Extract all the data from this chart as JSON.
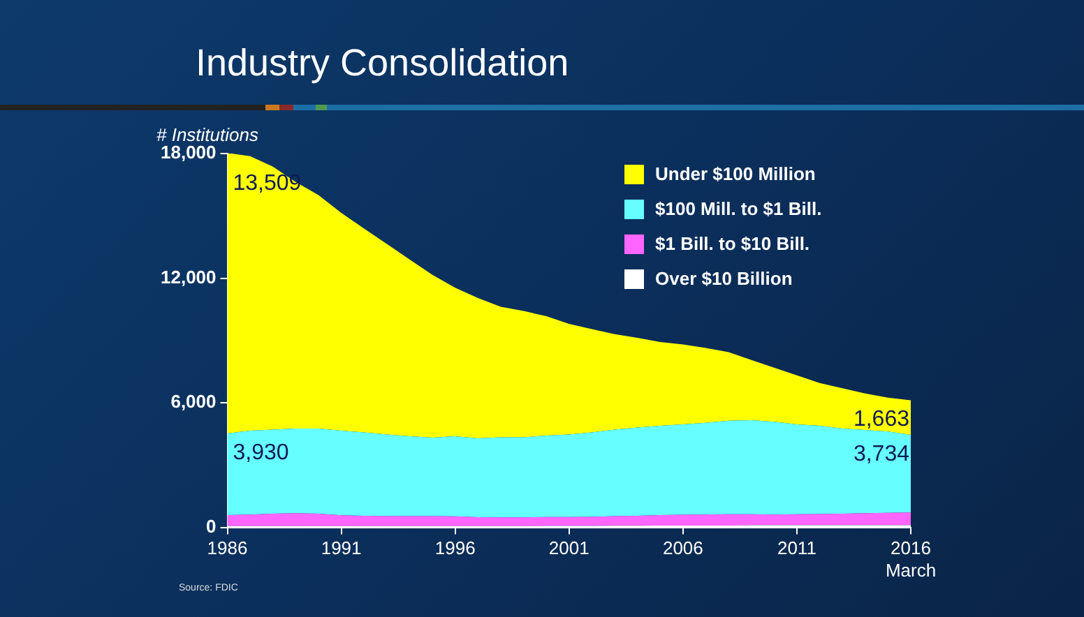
{
  "chart_data": {
    "type": "area",
    "title": "Industry Consolidation",
    "ylabel": "# Institutions",
    "annotations": [
      "Source: FDIC"
    ],
    "x": [
      1986,
      1987,
      1988,
      1989,
      1990,
      1991,
      1992,
      1993,
      1994,
      1995,
      1996,
      1997,
      1998,
      1999,
      2000,
      2001,
      2002,
      2003,
      2004,
      2005,
      2006,
      2007,
      2008,
      2009,
      2010,
      2011,
      2012,
      2013,
      2014,
      2015,
      2016
    ],
    "stacked": true,
    "xlim": [
      1986,
      2016
    ],
    "xticks": [
      1986,
      1991,
      1996,
      2001,
      2006,
      2011,
      {
        "value": 2016,
        "label": "2016\nMarch"
      }
    ],
    "ylim": [
      0,
      18000
    ],
    "yticks": [
      {
        "value": 0,
        "label": "0"
      },
      {
        "value": 6000,
        "label": "6,000"
      },
      {
        "value": 12000,
        "label": "12,000"
      },
      {
        "value": 18000,
        "label": "18,000"
      }
    ],
    "grid": false,
    "legend": "top right",
    "series": [
      {
        "name": "Over $10 Billion",
        "color": "#ffffff",
        "values": [
          60,
          60,
          60,
          60,
          60,
          60,
          60,
          60,
          60,
          60,
          60,
          60,
          60,
          60,
          70,
          70,
          70,
          80,
          80,
          90,
          90,
          90,
          90,
          100,
          100,
          100,
          100,
          100,
          100,
          100,
          100
        ]
      },
      {
        "name": "$1 Bill. to $10 Bill.",
        "color": "#ff66ff",
        "values": [
          530,
          560,
          600,
          620,
          600,
          520,
          500,
          480,
          480,
          480,
          470,
          430,
          420,
          420,
          430,
          430,
          440,
          460,
          480,
          500,
          520,
          530,
          540,
          530,
          520,
          530,
          540,
          560,
          580,
          600,
          620
        ]
      },
      {
        "name": "$100 Mill. to $1 Bill.",
        "color": "#66ffff",
        "values": [
          3930,
          4040,
          4050,
          4080,
          4100,
          4080,
          4010,
          3930,
          3850,
          3780,
          3860,
          3800,
          3860,
          3860,
          3920,
          3970,
          4060,
          4170,
          4250,
          4300,
          4350,
          4420,
          4510,
          4530,
          4470,
          4330,
          4250,
          4100,
          4010,
          3920,
          3734
        ],
        "value_labels": [
          "3,930",
          null,
          null,
          null,
          null,
          null,
          null,
          null,
          null,
          null,
          null,
          null,
          null,
          null,
          null,
          null,
          null,
          null,
          null,
          null,
          null,
          null,
          null,
          null,
          null,
          null,
          null,
          null,
          null,
          null,
          "3,734"
        ]
      },
      {
        "name": "Under $100 Million",
        "color": "#ffff00",
        "values": [
          13509,
          13210,
          12660,
          11870,
          11240,
          10480,
          9820,
          9180,
          8510,
          7840,
          7150,
          6750,
          6280,
          6080,
          5750,
          5330,
          4980,
          4590,
          4320,
          4040,
          3850,
          3600,
          3300,
          2900,
          2600,
          2360,
          2060,
          1940,
          1760,
          1630,
          1663
        ],
        "value_labels": [
          "13,509",
          null,
          null,
          null,
          null,
          null,
          null,
          null,
          null,
          null,
          null,
          null,
          null,
          null,
          null,
          null,
          null,
          null,
          null,
          null,
          null,
          null,
          null,
          null,
          null,
          null,
          null,
          null,
          null,
          null,
          "1,663"
        ]
      }
    ]
  }
}
